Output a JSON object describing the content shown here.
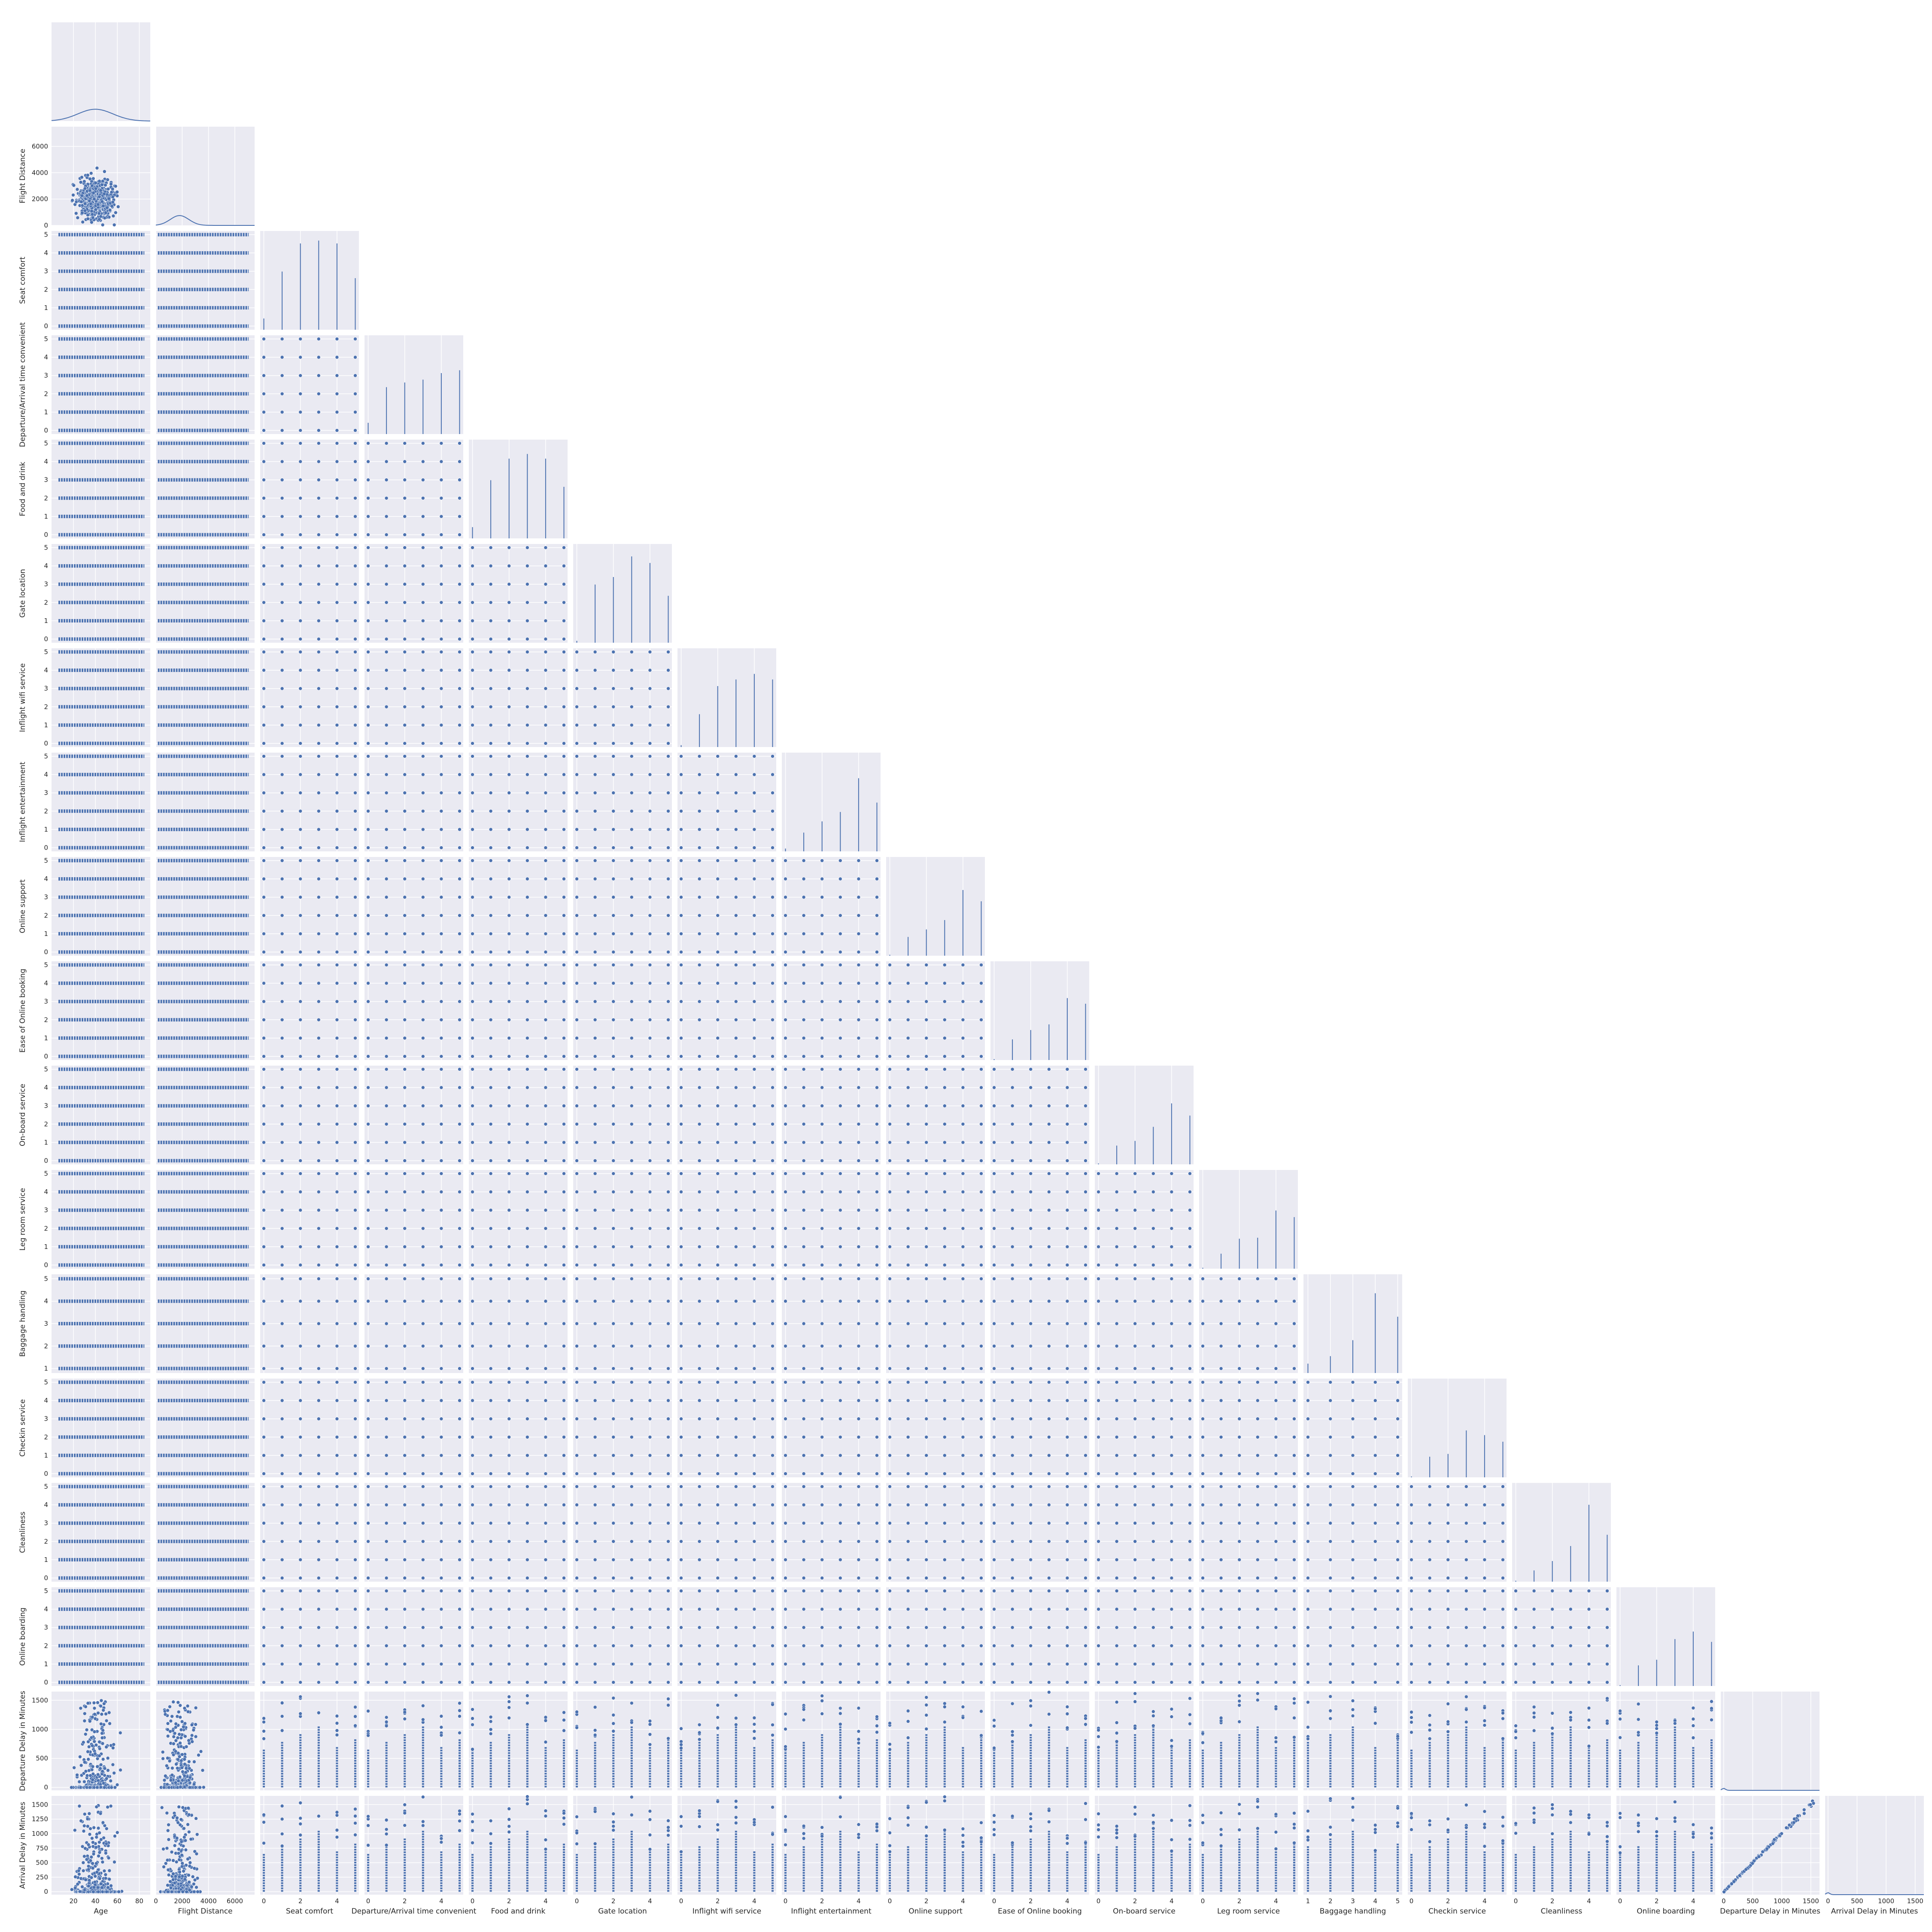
{
  "chart_data": {
    "type": "scatter",
    "layout": "pairplot-lower-triangle",
    "grid": true,
    "variables": [
      {
        "name": "Age",
        "kind": "continuous",
        "range": [
          0,
          90
        ],
        "ticks": [
          20,
          40,
          60,
          80
        ]
      },
      {
        "name": "Flight Distance",
        "kind": "continuous",
        "range": [
          0,
          7500
        ],
        "ticks": [
          0,
          2000,
          4000,
          6000
        ],
        "ytick_labels": [
          0,
          2000,
          4000,
          6000
        ]
      },
      {
        "name": "Seat comfort",
        "kind": "rating",
        "range": [
          -0.2,
          5.2
        ],
        "ticks": [
          0,
          2,
          4
        ],
        "yticks": [
          0,
          1,
          2,
          3,
          4,
          5
        ]
      },
      {
        "name": "Departure/Arrival time convenient",
        "kind": "rating",
        "range": [
          -0.2,
          5.2
        ],
        "ticks": [
          0,
          2,
          4
        ],
        "yticks": [
          0,
          1,
          2,
          3,
          4,
          5
        ]
      },
      {
        "name": "Food and drink",
        "kind": "rating",
        "range": [
          -0.2,
          5.2
        ],
        "ticks": [
          0,
          2,
          4
        ],
        "yticks": [
          0,
          1,
          2,
          3,
          4,
          5
        ]
      },
      {
        "name": "Gate location",
        "kind": "rating",
        "range": [
          -0.2,
          5.2
        ],
        "ticks": [
          0,
          2,
          4
        ],
        "yticks": [
          0,
          1,
          2,
          3,
          4,
          5
        ]
      },
      {
        "name": "Inflight wifi service",
        "kind": "rating",
        "range": [
          -0.2,
          5.2
        ],
        "ticks": [
          0,
          2,
          4
        ],
        "yticks": [
          0,
          1,
          2,
          3,
          4,
          5
        ]
      },
      {
        "name": "Inflight entertainment",
        "kind": "rating",
        "range": [
          -0.2,
          5.2
        ],
        "ticks": [
          0,
          2,
          4
        ],
        "yticks": [
          0,
          1,
          2,
          3,
          4,
          5
        ]
      },
      {
        "name": "Online support",
        "kind": "rating",
        "range": [
          -0.2,
          5.2
        ],
        "ticks": [
          0,
          2,
          4
        ],
        "yticks": [
          0,
          1,
          2,
          3,
          4,
          5
        ]
      },
      {
        "name": "Ease of Online booking",
        "kind": "rating",
        "range": [
          -0.2,
          5.2
        ],
        "ticks": [
          0,
          2,
          4
        ],
        "yticks": [
          0,
          1,
          2,
          3,
          4,
          5
        ]
      },
      {
        "name": "On-board service",
        "kind": "rating",
        "range": [
          -0.2,
          5.2
        ],
        "ticks": [
          0,
          2,
          4
        ],
        "yticks": [
          0,
          1,
          2,
          3,
          4,
          5
        ]
      },
      {
        "name": "Leg room service",
        "kind": "rating",
        "range": [
          -0.2,
          5.2
        ],
        "ticks": [
          0,
          2,
          4
        ],
        "yticks": [
          0,
          1,
          2,
          3,
          4,
          5
        ]
      },
      {
        "name": "Baggage handling",
        "kind": "rating",
        "range": [
          0.8,
          5.2
        ],
        "ticks": [
          1,
          2,
          3,
          4,
          5
        ],
        "yticks": [
          1,
          2,
          3,
          4,
          5
        ]
      },
      {
        "name": "Checkin service",
        "kind": "rating",
        "range": [
          -0.2,
          5.2
        ],
        "ticks": [
          0,
          2,
          4
        ],
        "yticks": [
          0,
          1,
          2,
          3,
          4,
          5
        ]
      },
      {
        "name": "Cleanliness",
        "kind": "rating",
        "range": [
          -0.2,
          5.2
        ],
        "ticks": [
          0,
          2,
          4
        ],
        "yticks": [
          0,
          1,
          2,
          3,
          4,
          5
        ]
      },
      {
        "name": "Online boarding",
        "kind": "rating",
        "range": [
          -0.2,
          5.2
        ],
        "ticks": [
          0,
          2,
          4
        ],
        "yticks": [
          0,
          1,
          2,
          3,
          4,
          5
        ]
      },
      {
        "name": "Departure Delay in Minutes",
        "kind": "delay",
        "range": [
          -50,
          1650
        ],
        "ticks": [
          0,
          500,
          1000,
          1500
        ],
        "yticks": [
          0,
          500,
          1000,
          1500
        ]
      },
      {
        "name": "Arrival Delay in Minutes",
        "kind": "delay",
        "range": [
          -50,
          1650
        ],
        "ticks": [
          0,
          500,
          1000,
          1500
        ],
        "yticks": [
          0,
          250,
          500,
          750,
          1000,
          1250,
          1500
        ]
      }
    ],
    "diagonal_histograms": {
      "Seat comfort": [
        0.12,
        0.62,
        0.92,
        0.95,
        0.92,
        0.55
      ],
      "Departure/Arrival time convenient": [
        0.12,
        0.5,
        0.55,
        0.58,
        0.65,
        0.68
      ],
      "Food and drink": [
        0.12,
        0.62,
        0.85,
        0.9,
        0.85,
        0.55
      ],
      "Gate location": [
        0.02,
        0.62,
        0.7,
        0.92,
        0.85,
        0.5
      ],
      "Inflight wifi service": [
        0.02,
        0.35,
        0.65,
        0.72,
        0.78,
        0.72
      ],
      "Inflight entertainment": [
        0.03,
        0.2,
        0.32,
        0.42,
        0.78,
        0.52
      ],
      "Online support": [
        0.01,
        0.2,
        0.28,
        0.38,
        0.7,
        0.58
      ],
      "Ease of Online booking": [
        0.01,
        0.22,
        0.32,
        0.38,
        0.66,
        0.6
      ],
      "On-board service": [
        0.01,
        0.2,
        0.25,
        0.4,
        0.65,
        0.52
      ],
      "Leg room service": [
        0.01,
        0.16,
        0.32,
        0.33,
        0.62,
        0.55
      ],
      "Baggage handling": [
        0.1,
        0.18,
        0.35,
        0.85,
        0.6
      ],
      "Checkin service": [
        0.01,
        0.22,
        0.25,
        0.5,
        0.45,
        0.38
      ],
      "Cleanliness": [
        0.01,
        0.12,
        0.22,
        0.38,
        0.82,
        0.5
      ],
      "Online boarding": [
        0.01,
        0.22,
        0.28,
        0.5,
        0.58,
        0.47
      ]
    },
    "diagonal_kde": {
      "Age": {
        "center": 40,
        "spread": 16,
        "height": 0.12
      },
      "Flight Distance": {
        "center": 1800,
        "spread": 700,
        "height": 0.1
      },
      "Departure Delay in Minutes": {
        "center": 0,
        "spread": 30,
        "height": 0.02
      },
      "Arrival Delay in Minutes": {
        "center": 0,
        "spread": 30,
        "height": 0.02
      }
    },
    "colors": {
      "marker": "#4c72b0",
      "marker_edge": "#ffffff",
      "panel_bg": "#eaeaf2",
      "grid": "#ffffff",
      "text": "#262626"
    }
  }
}
